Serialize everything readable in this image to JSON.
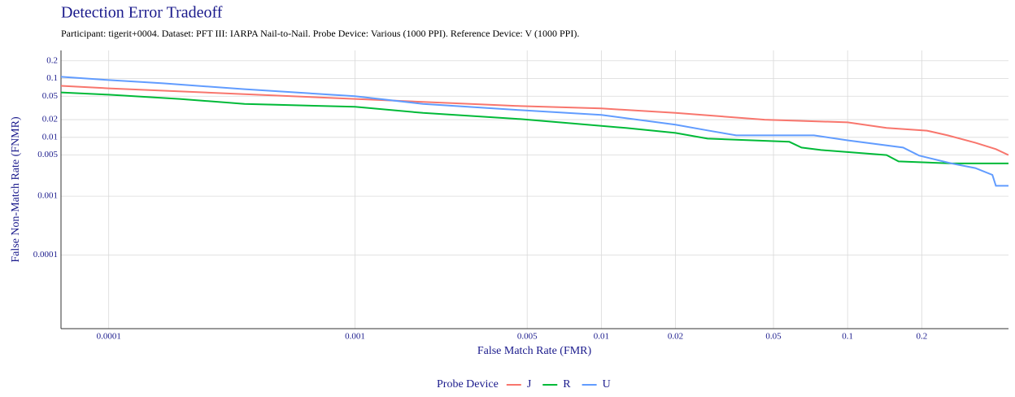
{
  "chart_data": {
    "type": "line",
    "title": "Detection Error Tradeoff",
    "subtitle": "Participant: tigerit+0004. Dataset: PFT III: IARPA Nail-to-Nail. Probe Device: Various (1000 PPI). Reference Device: V (1000 PPI).",
    "x_label": "False Match Rate (FMR)",
    "y_label": "False Non-Match Rate (FNMR)",
    "x_scale": "log",
    "y_scale": "log",
    "xlim": [
      6.4e-05,
      0.45
    ],
    "ylim": [
      5.6e-06,
      0.3
    ],
    "xticks": [
      0.0001,
      0.001,
      0.005,
      0.01,
      0.02,
      0.05,
      0.1,
      0.2
    ],
    "yticks": [
      0.0001,
      0.001,
      0.005,
      0.01,
      0.02,
      0.05,
      0.1,
      0.2
    ],
    "grid": true,
    "legend_title": "Probe Device",
    "legend_position": "bottom",
    "series": [
      {
        "name": "J",
        "color": "#f8766d",
        "x": [
          6.4e-05,
          0.0001,
          0.001,
          0.0047,
          0.01,
          0.02,
          0.046,
          0.1,
          0.144,
          0.21,
          0.255,
          0.33,
          0.4,
          0.45
        ],
        "values": [
          0.075,
          0.068,
          0.045,
          0.034,
          0.031,
          0.026,
          0.02,
          0.018,
          0.0145,
          0.013,
          0.0108,
          0.0081,
          0.0063,
          0.005
        ]
      },
      {
        "name": "R",
        "color": "#00ba38",
        "x": [
          6.4e-05,
          0.0001,
          0.000194,
          0.000356,
          0.001,
          0.00189,
          0.0047,
          0.0074,
          0.0127,
          0.02,
          0.027,
          0.058,
          0.065,
          0.078,
          0.144,
          0.161,
          0.264,
          0.45
        ],
        "values": [
          0.058,
          0.053,
          0.045,
          0.037,
          0.033,
          0.026,
          0.0204,
          0.0174,
          0.0144,
          0.0119,
          0.0095,
          0.0084,
          0.0067,
          0.0061,
          0.005,
          0.0039,
          0.0036,
          0.0036
        ]
      },
      {
        "name": "U",
        "color": "#619cff",
        "x": [
          6.4e-05,
          0.0001,
          0.000166,
          0.000356,
          0.001,
          0.00189,
          0.0047,
          0.01,
          0.02,
          0.027,
          0.0353,
          0.073,
          0.1,
          0.168,
          0.195,
          0.264,
          0.33,
          0.387,
          0.4,
          0.45
        ],
        "values": [
          0.107,
          0.094,
          0.083,
          0.066,
          0.05,
          0.037,
          0.029,
          0.024,
          0.0164,
          0.0131,
          0.0108,
          0.0108,
          0.0089,
          0.0067,
          0.0049,
          0.0036,
          0.003,
          0.0023,
          0.0015,
          0.0015
        ]
      }
    ]
  }
}
